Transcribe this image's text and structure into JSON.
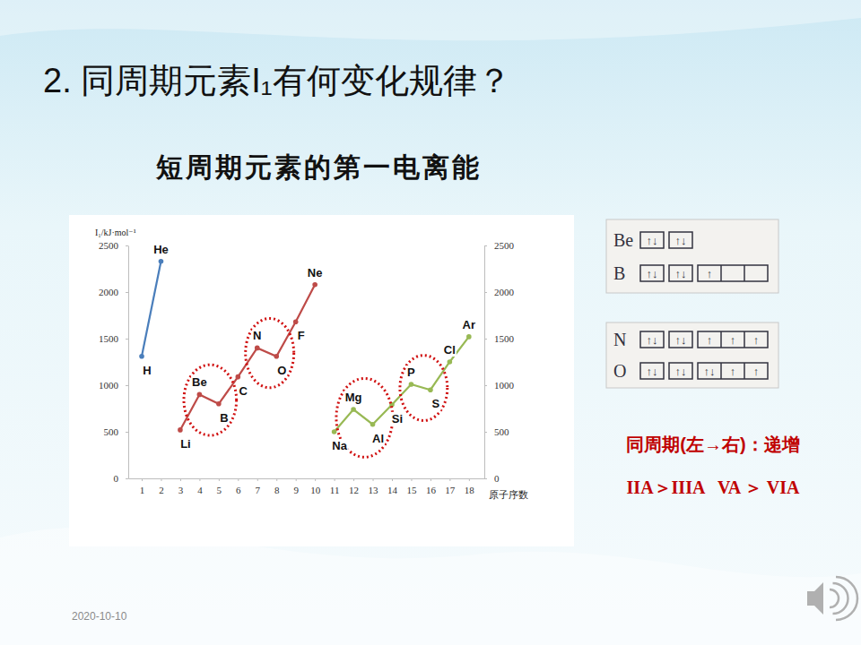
{
  "slide": {
    "title": "2. 同周期元素I₁有何变化规律？",
    "date": "2020-10-10",
    "notes": [
      "同周期(左→右)：递增",
      "IIA＞IIIA   VA ＞ VIA"
    ],
    "orbital_diagrams": [
      [
        {
          "element": "Be",
          "orbitals": [
            [
              "↑↓"
            ],
            [
              "↑↓"
            ]
          ]
        },
        {
          "element": "B",
          "orbitals": [
            [
              "↑↓"
            ],
            [
              "↑↓"
            ],
            [
              "↑",
              null,
              null
            ]
          ]
        }
      ],
      [
        {
          "element": "N",
          "orbitals": [
            [
              "↑↓"
            ],
            [
              "↑↓"
            ],
            [
              "↑",
              "↑",
              "↑"
            ]
          ]
        },
        {
          "element": "O",
          "orbitals": [
            [
              "↑↓"
            ],
            [
              "↑↓"
            ],
            [
              "↑↓",
              "↑",
              "↑"
            ]
          ]
        }
      ]
    ]
  },
  "chart_data": {
    "type": "line",
    "title": "短周期元素的第一电离能",
    "ylabel": "I₁/kJ·mol⁻¹",
    "xlabel": "原子序数",
    "marker": "circle",
    "xlim": [
      0.3,
      18.8
    ],
    "xticks": [
      1,
      2,
      3,
      4,
      5,
      6,
      7,
      8,
      9,
      10,
      11,
      12,
      13,
      14,
      15,
      16,
      17,
      18
    ],
    "ylim": [
      0,
      2500
    ],
    "yticks": [
      0,
      500,
      1000,
      1500,
      2000,
      2500
    ],
    "y2lim": [
      0,
      2500
    ],
    "y2ticks": [
      0,
      500,
      1000,
      1500,
      2000,
      2500
    ],
    "series": [
      {
        "color": "#4a7ebb",
        "x": [
          1,
          2
        ],
        "values": [
          1310,
          2330
        ],
        "labels": [
          "H",
          "He"
        ]
      },
      {
        "color": "#be4b48",
        "x": [
          3,
          4,
          5,
          6,
          7,
          8,
          9,
          10
        ],
        "values": [
          520,
          900,
          800,
          1090,
          1400,
          1310,
          1680,
          2080
        ],
        "labels": [
          "Li",
          "Be",
          "B",
          "C",
          "N",
          "O",
          "F",
          "Ne"
        ]
      },
      {
        "color": "#98b954",
        "x": [
          11,
          12,
          13,
          14,
          15,
          16,
          17,
          18
        ],
        "values": [
          500,
          740,
          580,
          790,
          1010,
          950,
          1250,
          1520
        ],
        "labels": [
          "Na",
          "Mg",
          "Al",
          "Si",
          "P",
          "S",
          "Cl",
          "Ar"
        ]
      }
    ],
    "highlights": [
      [
        4,
        5
      ],
      [
        7,
        8
      ],
      [
        12,
        13
      ],
      [
        15,
        16
      ]
    ]
  }
}
